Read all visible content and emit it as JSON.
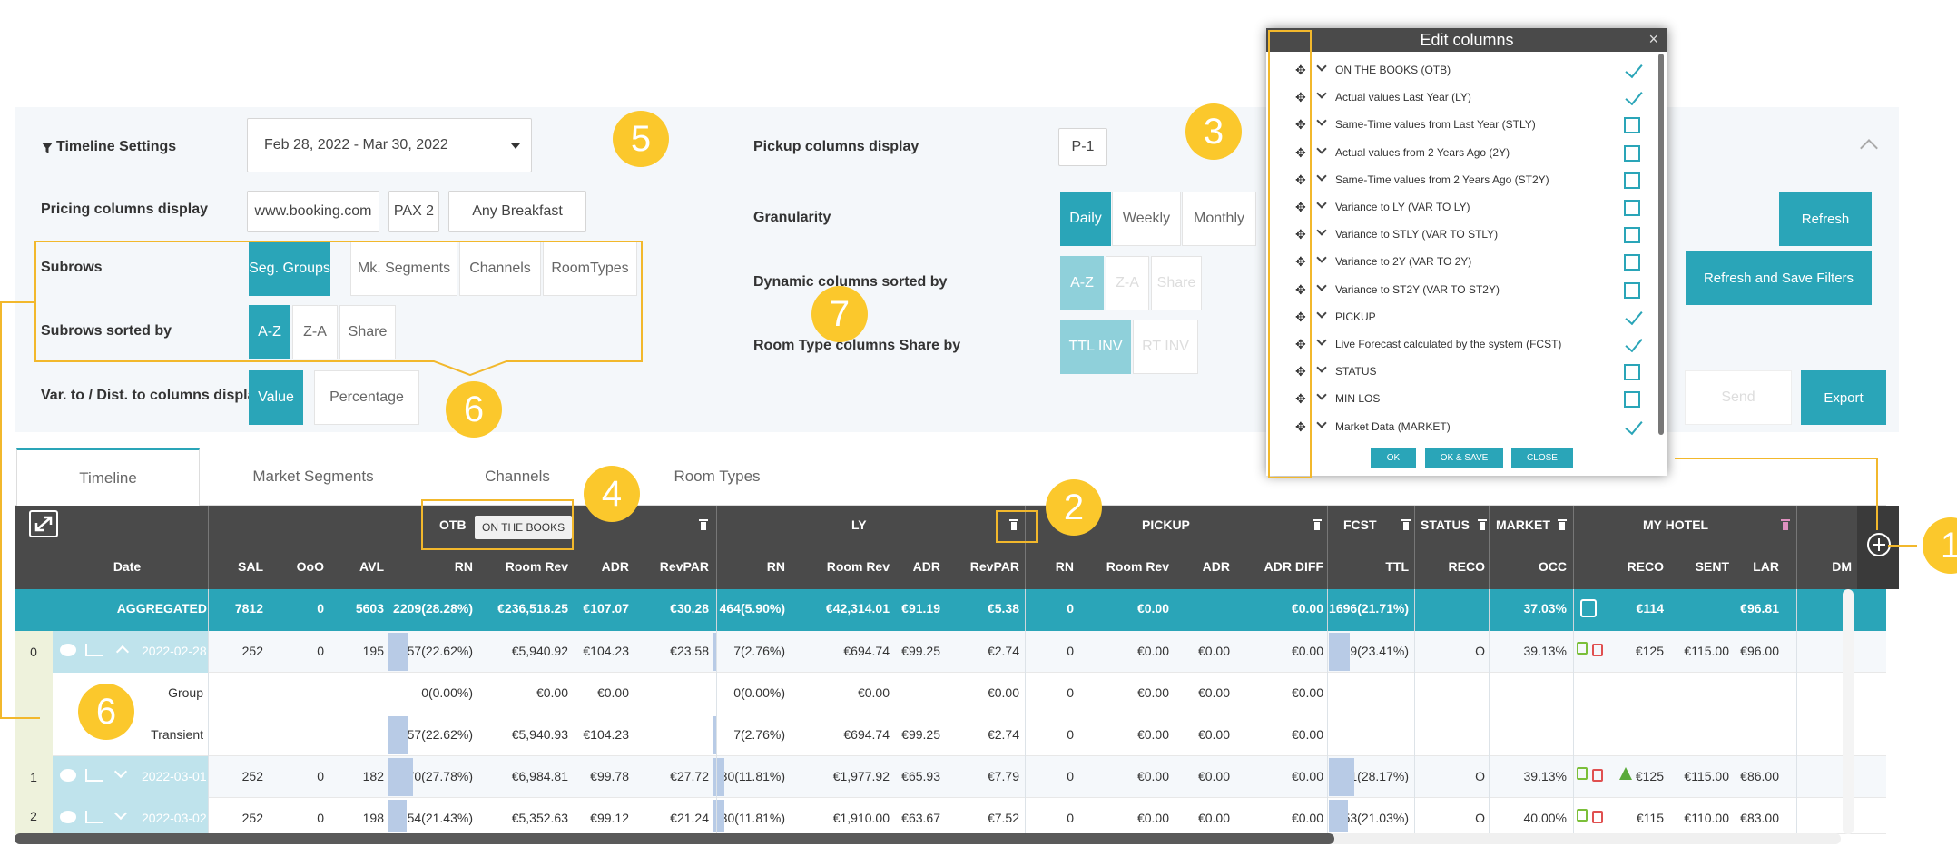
{
  "settings": {
    "timeline_settings_label": "Timeline Settings",
    "date_range": "Feb 28, 2022 - Mar 30, 2022",
    "pickup_label": "Pickup columns display",
    "pickup_value": "P-1",
    "pricing_label": "Pricing columns display",
    "pricing_source": "www.booking.com",
    "pricing_pax": "PAX 2",
    "pricing_meal": "Any Breakfast",
    "granularity_label": "Granularity",
    "granularity": [
      "Daily",
      "Weekly",
      "Monthly"
    ],
    "subrows_label": "Subrows",
    "subrows": [
      "Seg. Groups",
      "Mk. Segments",
      "Channels",
      "RoomTypes"
    ],
    "dynamic_sorted_label": "Dynamic columns sorted by",
    "dynamic_sorted": [
      "A-Z",
      "Z-A",
      "Share"
    ],
    "subrows_sorted_label": "Subrows sorted by",
    "subrows_sorted": [
      "A-Z",
      "Z-A",
      "Share"
    ],
    "room_type_share_label": "Room Type columns Share by",
    "room_type_share": [
      "TTL INV",
      "RT INV"
    ],
    "var_label": "Var. to / Dist. to columns displa",
    "var_options": [
      "Value",
      "Percentage"
    ],
    "refresh": "Refresh",
    "refresh_save": "Refresh and Save Filters",
    "send": "Send",
    "export": "Export"
  },
  "badges": [
    "1",
    "2",
    "3",
    "4",
    "5",
    "6",
    "6",
    "7"
  ],
  "tabs": [
    "Timeline",
    "Market Segments",
    "Channels",
    "Room Types"
  ],
  "edit_columns": {
    "title": "Edit columns",
    "items": [
      {
        "label": "ON THE BOOKS (OTB)",
        "checked": true
      },
      {
        "label": "Actual values Last Year (LY)",
        "checked": true
      },
      {
        "label": "Same-Time values from Last Year (STLY)",
        "checked": false
      },
      {
        "label": "Actual values from 2 Years Ago (2Y)",
        "checked": false
      },
      {
        "label": "Same-Time values from 2 Years Ago (ST2Y)",
        "checked": false
      },
      {
        "label": "Variance to LY (VAR TO LY)",
        "checked": false
      },
      {
        "label": "Variance to STLY (VAR TO STLY)",
        "checked": false
      },
      {
        "label": "Variance to 2Y (VAR TO 2Y)",
        "checked": false
      },
      {
        "label": "Variance to ST2Y (VAR TO ST2Y)",
        "checked": false
      },
      {
        "label": "PICKUP",
        "checked": true
      },
      {
        "label": "Live Forecast calculated by the system (FCST)",
        "checked": true
      },
      {
        "label": "STATUS",
        "checked": false
      },
      {
        "label": "MIN LOS",
        "checked": false
      },
      {
        "label": "Market Data (MARKET)",
        "checked": true
      }
    ],
    "ok": "OK",
    "ok_save": "OK & SAVE",
    "close": "CLOSE"
  },
  "table": {
    "groups": {
      "otb": "OTB",
      "otb_tooltip": "ON THE BOOKS",
      "ly": "LY",
      "pickup": "PICKUP",
      "fcst": "FCST",
      "status": "STATUS",
      "market": "MARKET",
      "myhotel": "MY HOTEL"
    },
    "columns": {
      "date": "Date",
      "sal": "SAL",
      "ooo": "OoO",
      "avl": "AVL",
      "rn": "RN",
      "room_rev": "Room Rev",
      "adr": "ADR",
      "revpar": "RevPAR",
      "ly_rn": "RN",
      "ly_room_rev": "Room Rev",
      "ly_adr": "ADR",
      "ly_revpar": "RevPAR",
      "pu_rn": "RN",
      "pu_room_rev": "Room Rev",
      "pu_adr": "ADR",
      "pu_adr_diff": "ADR DIFF",
      "ttl": "TTL",
      "reco_status": "RECO",
      "occ": "OCC",
      "reco": "RECO",
      "sent": "SENT",
      "lar": "LAR",
      "dm": "DM"
    },
    "aggregated": {
      "label": "AGGREGATED",
      "sal": "7812",
      "ooo": "0",
      "avl": "5603",
      "rn": "2209(28.28%)",
      "room_rev": "€236,518.25",
      "adr": "€107.07",
      "revpar": "€30.28",
      "ly_rn": "464(5.90%)",
      "ly_room_rev": "€42,314.01",
      "ly_adr": "€91.19",
      "ly_revpar": "€5.38",
      "pu_rn": "0",
      "pu_room_rev": "€0.00",
      "pu_adr_diff": "€0.00",
      "ttl": "1696(21.71%)",
      "occ": "37.03%",
      "reco": "€114",
      "lar": "€96.81"
    },
    "rows": [
      {
        "idx": "0",
        "date": "2022-02-28",
        "sal": "252",
        "ooo": "0",
        "avl": "195",
        "rn": "57(22.62%)",
        "room_rev": "€5,940.92",
        "adr": "€104.23",
        "revpar": "€23.58",
        "ly_rn": "7(2.76%)",
        "ly_room_rev": "€694.74",
        "ly_adr": "€99.25",
        "ly_revpar": "€2.74",
        "pu_rn": "0",
        "pu_room_rev": "€0.00",
        "pu_adr": "€0.00",
        "pu_adr_diff": "€0.00",
        "ttl": "59(23.41%)",
        "status": "O",
        "occ": "39.13%",
        "reco": "€125",
        "sent": "€115.00",
        "lar": "€96.00",
        "rn_fill": 0.2262,
        "ly_fill": 0.0276,
        "ttl_fill": 0.2341
      },
      {
        "idx": "",
        "date": "Group",
        "sal": "",
        "ooo": "",
        "avl": "",
        "rn": "0(0.00%)",
        "room_rev": "€0.00",
        "adr": "€0.00",
        "revpar": "",
        "ly_rn": "0(0.00%)",
        "ly_room_rev": "€0.00",
        "ly_adr": "",
        "ly_revpar": "€0.00",
        "pu_rn": "0",
        "pu_room_rev": "€0.00",
        "pu_adr": "€0.00",
        "pu_adr_diff": "€0.00",
        "ttl": "",
        "status": "",
        "occ": "",
        "reco": "",
        "sent": "",
        "lar": ""
      },
      {
        "idx": "",
        "date": "Transient",
        "sal": "",
        "ooo": "",
        "avl": "",
        "rn": "57(22.62%)",
        "room_rev": "€5,940.93",
        "adr": "€104.23",
        "revpar": "",
        "ly_rn": "7(2.76%)",
        "ly_room_rev": "€694.74",
        "ly_adr": "€99.25",
        "ly_revpar": "€2.74",
        "pu_rn": "0",
        "pu_room_rev": "€0.00",
        "pu_adr": "€0.00",
        "pu_adr_diff": "€0.00",
        "ttl": "",
        "status": "",
        "occ": "",
        "reco": "",
        "sent": "",
        "lar": "",
        "rn_fill": 0.2262,
        "ly_fill": 0.0276
      },
      {
        "idx": "1",
        "date": "2022-03-01",
        "sal": "252",
        "ooo": "0",
        "avl": "182",
        "rn": "70(27.78%)",
        "room_rev": "€6,984.81",
        "adr": "€99.78",
        "revpar": "€27.72",
        "ly_rn": "30(11.81%)",
        "ly_room_rev": "€1,977.92",
        "ly_adr": "€65.93",
        "ly_revpar": "€7.79",
        "pu_rn": "0",
        "pu_room_rev": "€0.00",
        "pu_adr": "€0.00",
        "pu_adr_diff": "€0.00",
        "ttl": "71(28.17%)",
        "status": "O",
        "occ": "39.13%",
        "reco": "€125",
        "sent": "€115.00",
        "lar": "€86.00",
        "rn_fill": 0.2778,
        "ly_fill": 0.1181,
        "ttl_fill": 0.2817
      },
      {
        "idx": "2",
        "date": "2022-03-02",
        "sal": "252",
        "ooo": "0",
        "avl": "198",
        "rn": "54(21.43%)",
        "room_rev": "€5,352.63",
        "adr": "€99.12",
        "revpar": "€21.24",
        "ly_rn": "30(11.81%)",
        "ly_room_rev": "€1,910.00",
        "ly_adr": "€63.67",
        "ly_revpar": "€7.52",
        "pu_rn": "0",
        "pu_room_rev": "€0.00",
        "pu_adr": "€0.00",
        "pu_adr_diff": "€0.00",
        "ttl": "53(21.03%)",
        "status": "O",
        "occ": "40.00%",
        "reco": "€115",
        "sent": "€110.00",
        "lar": "€83.00",
        "rn_fill": 0.2143,
        "ly_fill": 0.1181,
        "ttl_fill": 0.2103
      }
    ]
  },
  "colors": {
    "accent": "#2aa5b8",
    "badge": "#fbc82c",
    "header": "#4a4a4a"
  }
}
